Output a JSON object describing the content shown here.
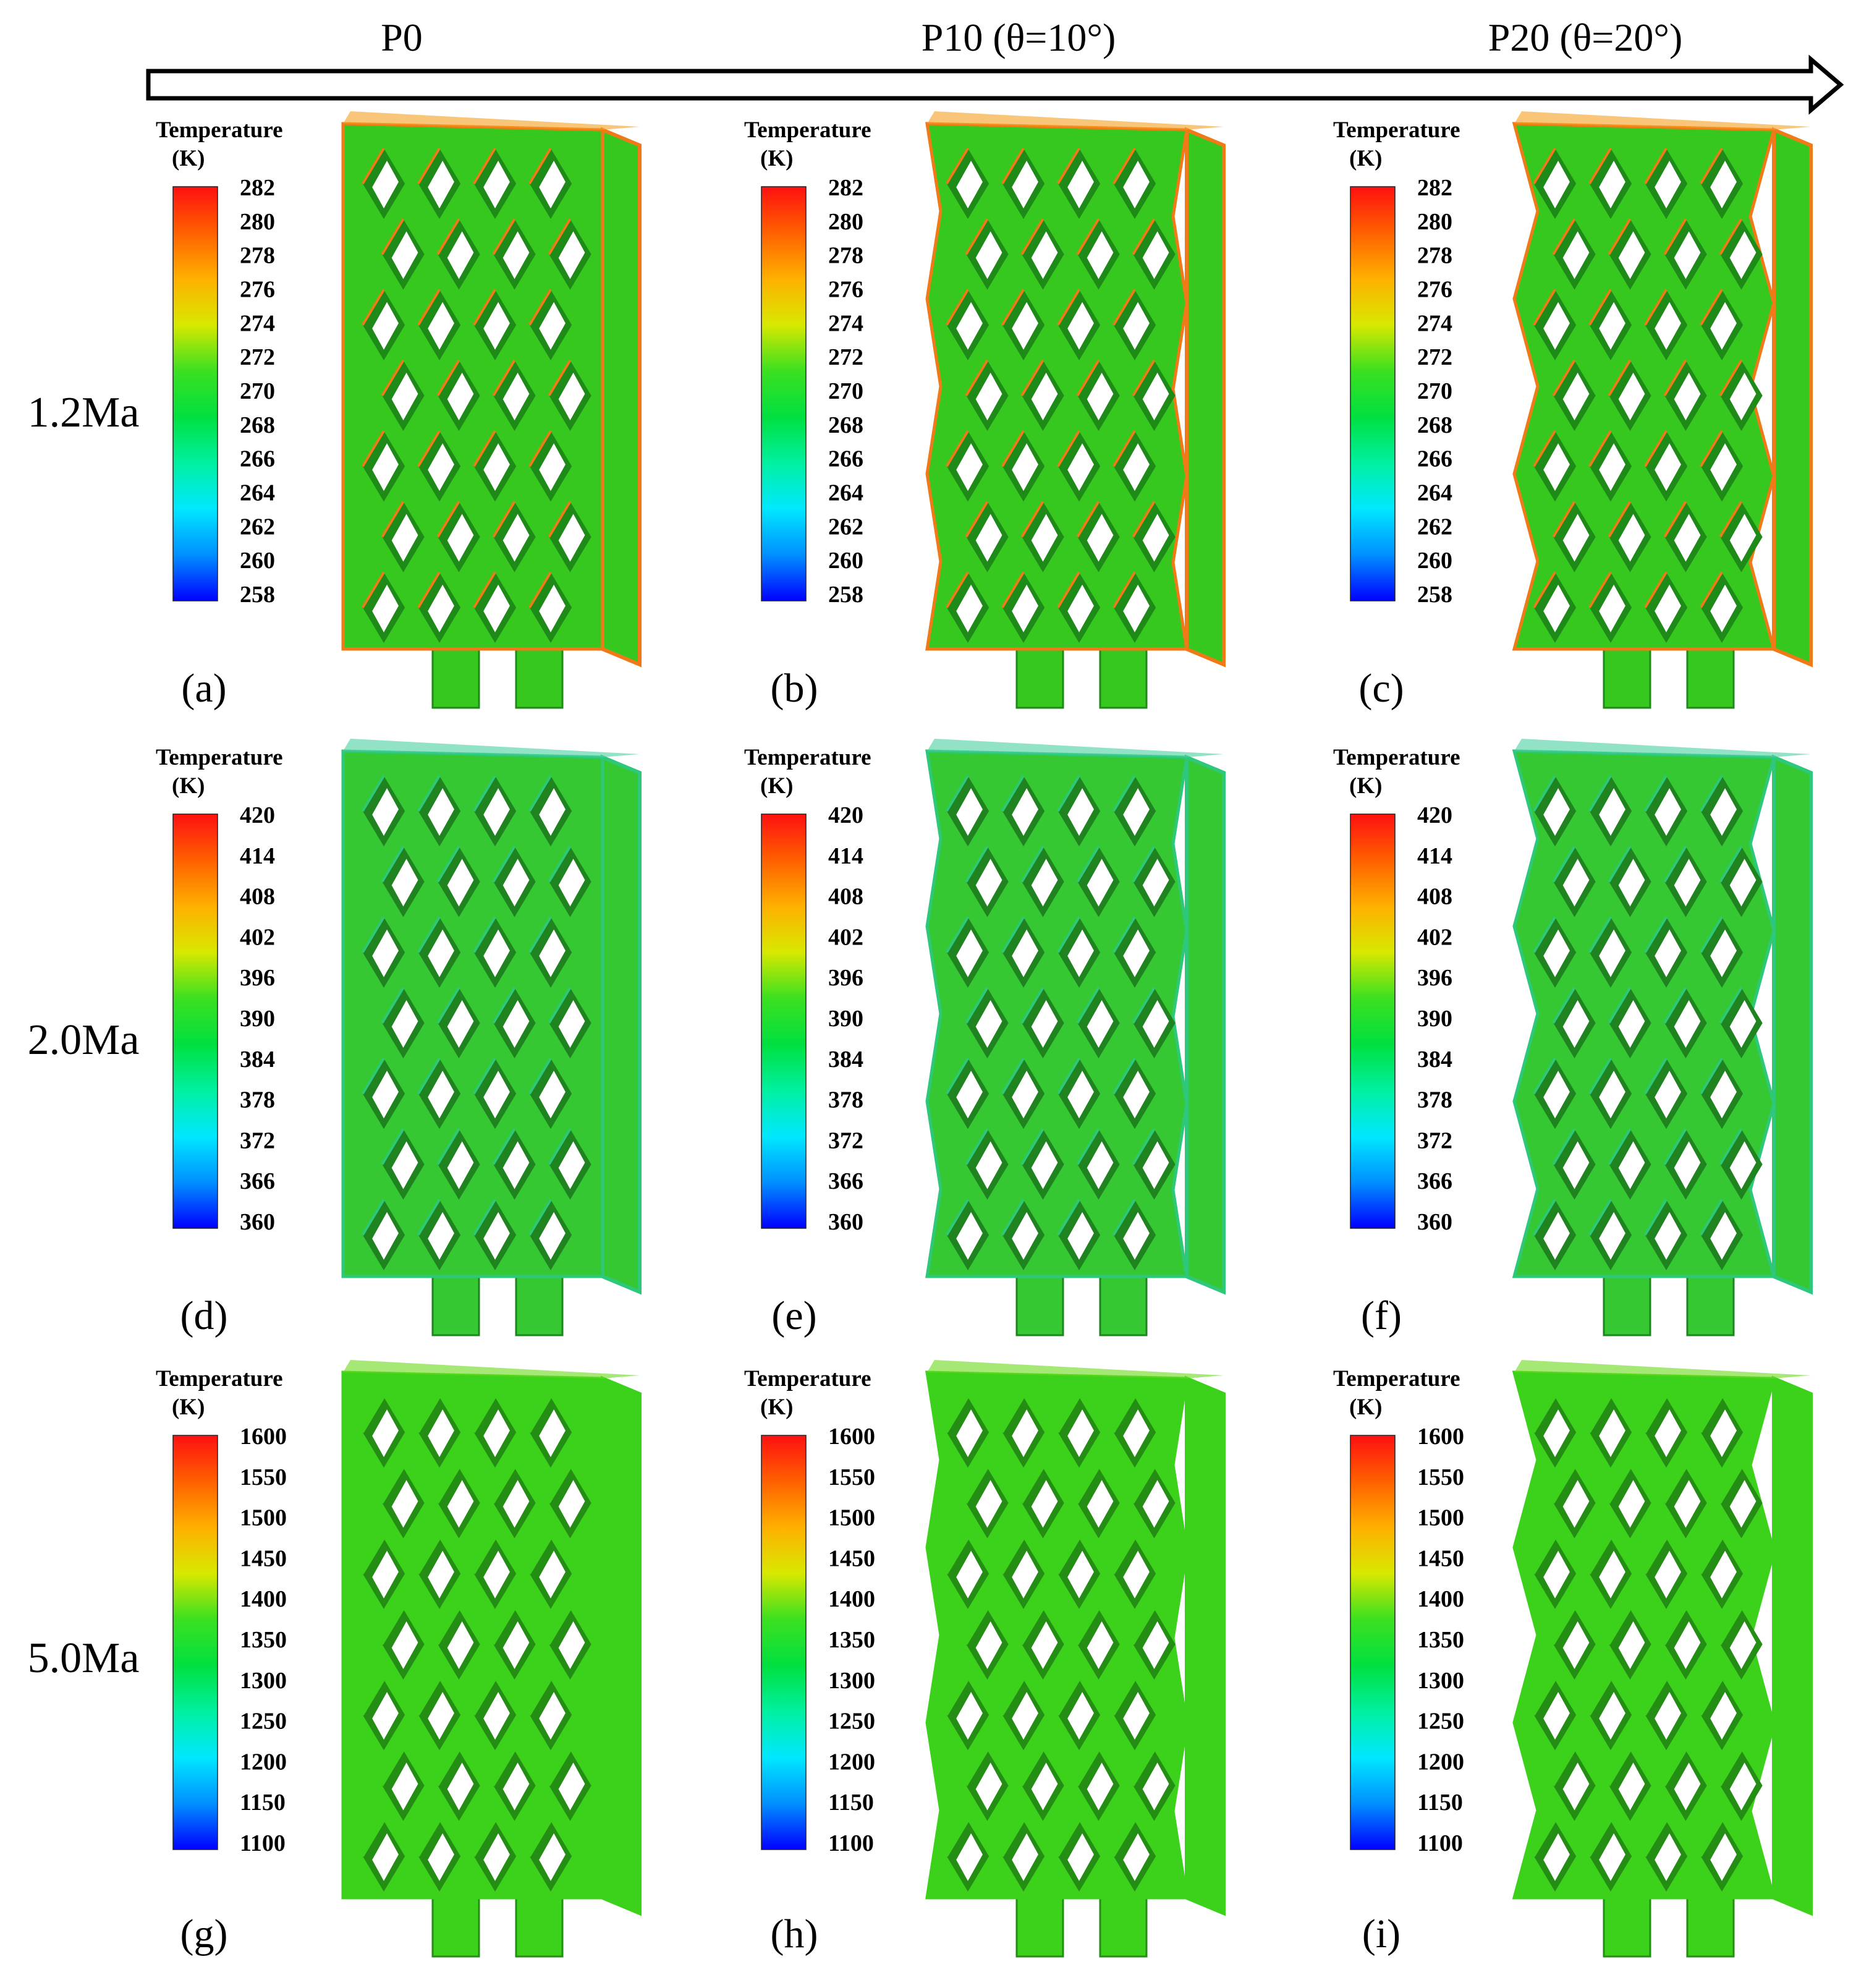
{
  "header": {
    "columns": [
      "P0",
      "P10 (θ=10°)",
      "P20 (θ=20°)"
    ]
  },
  "rows": [
    {
      "label": "1.2Ma",
      "legend": {
        "title": "Temperature",
        "unit": "(K)",
        "ticks": [
          "282",
          "280",
          "278",
          "276",
          "274",
          "272",
          "270",
          "268",
          "266",
          "264",
          "262",
          "260",
          "258"
        ]
      },
      "panels": [
        "(a)",
        "(b)",
        "(c)"
      ],
      "surface_colors": {
        "body": "#36c81e",
        "cell": "#1e8a18",
        "edge": "#f07a18",
        "hot": "#f5a020"
      }
    },
    {
      "label": "2.0Ma",
      "legend": {
        "title": "Temperature",
        "unit": "(K)",
        "ticks": [
          "420",
          "414",
          "408",
          "402",
          "396",
          "390",
          "384",
          "378",
          "372",
          "366",
          "360"
        ]
      },
      "panels": [
        "(d)",
        "(e)",
        "(f)"
      ],
      "surface_colors": {
        "body": "#36c832",
        "cell": "#1f8420",
        "edge": "#2ec87a",
        "hot": "#4ad0a0"
      }
    },
    {
      "label": "5.0Ma",
      "legend": {
        "title": "Temperature",
        "unit": "(K)",
        "ticks": [
          "1600",
          "1550",
          "1500",
          "1450",
          "1400",
          "1350",
          "1300",
          "1250",
          "1200",
          "1150",
          "1100"
        ]
      },
      "panels": [
        "(g)",
        "(h)",
        "(i)"
      ],
      "surface_colors": {
        "body": "#3cd21c",
        "cell": "#248e14",
        "edge": "#3cd21c",
        "hot": "#6ad81a"
      }
    }
  ],
  "colorbar_stops": [
    "#0000ff",
    "#0090ff",
    "#00e8ff",
    "#00f0a0",
    "#00e040",
    "#3ce020",
    "#d8e800",
    "#ffb000",
    "#ff6000",
    "#ff1010"
  ]
}
